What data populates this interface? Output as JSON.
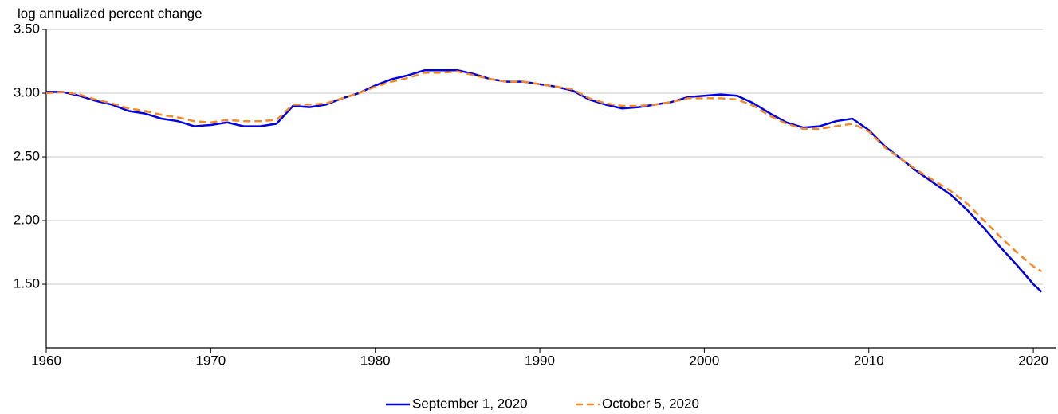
{
  "chart_data": {
    "type": "line",
    "y_axis_label": "log annualized percent change",
    "x": [
      1960,
      1961,
      1962,
      1963,
      1964,
      1965,
      1966,
      1967,
      1968,
      1969,
      1970,
      1971,
      1972,
      1973,
      1974,
      1975,
      1976,
      1977,
      1978,
      1979,
      1980,
      1981,
      1982,
      1983,
      1984,
      1985,
      1986,
      1987,
      1988,
      1989,
      1990,
      1991,
      1992,
      1993,
      1994,
      1995,
      1996,
      1997,
      1998,
      1999,
      2000,
      2001,
      2002,
      2003,
      2004,
      2005,
      2006,
      2007,
      2008,
      2009,
      2010,
      2011,
      2012,
      2013,
      2014,
      2015,
      2016,
      2017,
      2018,
      2019,
      2020,
      2020.5
    ],
    "series": [
      {
        "name": "September 1, 2020",
        "color": "#0000e0",
        "dash": "solid",
        "values": [
          3.01,
          3.01,
          2.98,
          2.94,
          2.91,
          2.86,
          2.84,
          2.8,
          2.78,
          2.74,
          2.75,
          2.77,
          2.74,
          2.74,
          2.76,
          2.9,
          2.89,
          2.91,
          2.96,
          3.0,
          3.06,
          3.11,
          3.14,
          3.18,
          3.18,
          3.18,
          3.15,
          3.11,
          3.09,
          3.09,
          3.07,
          3.05,
          3.02,
          2.95,
          2.91,
          2.88,
          2.89,
          2.91,
          2.93,
          2.97,
          2.98,
          2.99,
          2.98,
          2.92,
          2.84,
          2.77,
          2.73,
          2.74,
          2.78,
          2.8,
          2.71,
          2.58,
          2.48,
          2.38,
          2.29,
          2.2,
          2.08,
          1.94,
          1.79,
          1.65,
          1.5,
          1.44
        ]
      },
      {
        "name": "October 5, 2020",
        "color": "#f5892a",
        "dash": "dashed",
        "values": [
          3.0,
          3.01,
          2.99,
          2.95,
          2.92,
          2.88,
          2.86,
          2.83,
          2.81,
          2.78,
          2.77,
          2.79,
          2.78,
          2.78,
          2.79,
          2.91,
          2.91,
          2.92,
          2.96,
          3.0,
          3.05,
          3.09,
          3.12,
          3.16,
          3.16,
          3.17,
          3.14,
          3.11,
          3.09,
          3.09,
          3.07,
          3.05,
          3.03,
          2.96,
          2.92,
          2.9,
          2.9,
          2.91,
          2.93,
          2.96,
          2.96,
          2.96,
          2.95,
          2.9,
          2.82,
          2.76,
          2.72,
          2.72,
          2.74,
          2.76,
          2.7,
          2.57,
          2.48,
          2.39,
          2.31,
          2.23,
          2.13,
          2.0,
          1.87,
          1.75,
          1.64,
          1.6
        ]
      }
    ],
    "xlim": [
      1960,
      2021.4
    ],
    "xticks": [
      1960,
      1970,
      1980,
      1990,
      2000,
      2010,
      2020
    ],
    "ylim": [
      1,
      3.5
    ],
    "yticks": [
      {
        "value": 1.5,
        "label": "1.50"
      },
      {
        "value": 2,
        "label": "2.00"
      },
      {
        "value": 2.5,
        "label": "2.50"
      },
      {
        "value": 3,
        "label": "3.00"
      },
      {
        "value": 3.5,
        "label": "3.50"
      }
    ],
    "grid": true,
    "legend": "bottom"
  }
}
